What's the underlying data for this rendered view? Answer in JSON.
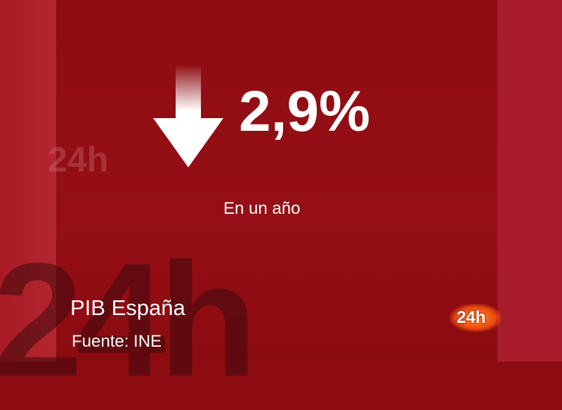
{
  "headline": {
    "value": "2,9%",
    "direction": "down",
    "icon": "down-arrow-icon"
  },
  "subtitle": "En un año",
  "caption": {
    "title": "PIB España",
    "source": "Fuente: INE"
  },
  "branding": {
    "logo": "24h",
    "watermark": "24h"
  },
  "colors": {
    "background": "#8c0c12",
    "side_panel": "#a81c2c",
    "logo_glow": "#e84810",
    "text": "#ffffff"
  }
}
